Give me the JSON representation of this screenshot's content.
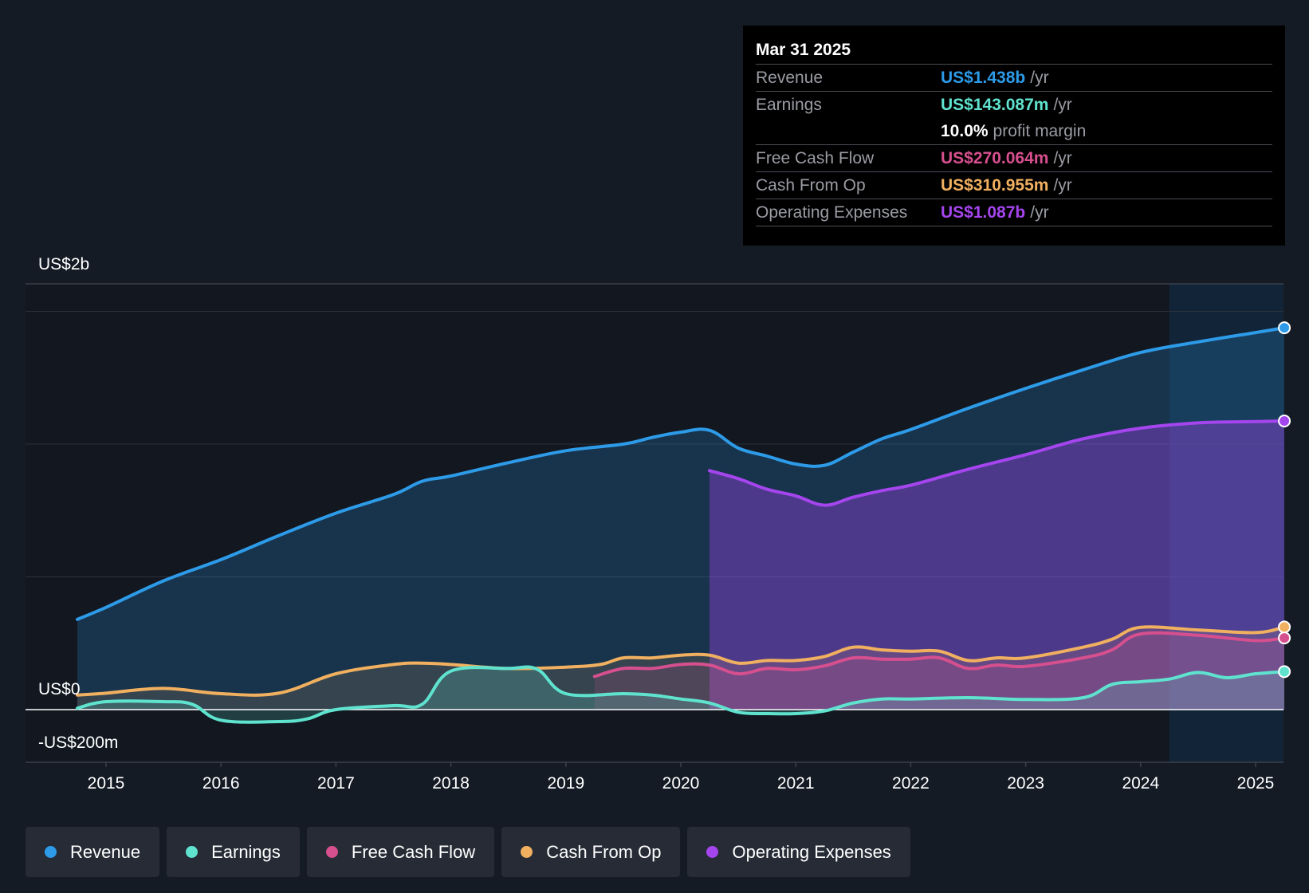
{
  "tooltip": {
    "date": "Mar 31 2025",
    "rows": [
      {
        "label": "Revenue",
        "value": "US$1.438b",
        "unit": "/yr",
        "color": "#2d9be8"
      },
      {
        "label": "Earnings",
        "value": "US$143.087m",
        "unit": "/yr",
        "color": "#5fe3cf"
      },
      {
        "label": "",
        "value": "10.0%",
        "unit": "profit margin",
        "color": "#ffffff"
      },
      {
        "label": "Free Cash Flow",
        "value": "US$270.064m",
        "unit": "/yr",
        "color": "#d64f8e"
      },
      {
        "label": "Cash From Op",
        "value": "US$310.955m",
        "unit": "/yr",
        "color": "#f0b060"
      },
      {
        "label": "Operating Expenses",
        "value": "US$1.087b",
        "unit": "/yr",
        "color": "#a545ee"
      }
    ]
  },
  "y_labels": {
    "top": "US$2b",
    "zero": "US$0",
    "bottom": "-US$200m"
  },
  "legend": [
    {
      "label": "Revenue",
      "color": "#2d9be8"
    },
    {
      "label": "Earnings",
      "color": "#5fe3cf"
    },
    {
      "label": "Free Cash Flow",
      "color": "#d64f8e"
    },
    {
      "label": "Cash From Op",
      "color": "#f0b060"
    },
    {
      "label": "Operating Expenses",
      "color": "#a545ee"
    }
  ],
  "chart_data": {
    "type": "area",
    "title": "",
    "xlabel": "",
    "ylabel": "",
    "x_ticks": [
      "2015",
      "2016",
      "2017",
      "2018",
      "2019",
      "2020",
      "2021",
      "2022",
      "2023",
      "2024",
      "2025"
    ],
    "xlim": [
      2014.3,
      2025.25
    ],
    "ylim": [
      -200,
      1600
    ],
    "y_axis_labels": [
      "US$2b",
      "US$0",
      "-US$200m"
    ],
    "gridlines_millions": [
      1500,
      1000,
      500,
      0
    ],
    "past_year_shade_start": 2024.25,
    "series": [
      {
        "name": "Revenue",
        "color": "#2d9be8",
        "points": [
          [
            2014.75,
            340
          ],
          [
            2015.0,
            385
          ],
          [
            2015.5,
            485
          ],
          [
            2016.0,
            565
          ],
          [
            2016.5,
            655
          ],
          [
            2017.0,
            740
          ],
          [
            2017.5,
            810
          ],
          [
            2017.75,
            860
          ],
          [
            2018.0,
            880
          ],
          [
            2018.5,
            930
          ],
          [
            2019.0,
            975
          ],
          [
            2019.5,
            1000
          ],
          [
            2019.75,
            1025
          ],
          [
            2020.0,
            1045
          ],
          [
            2020.25,
            1052
          ],
          [
            2020.5,
            985
          ],
          [
            2020.75,
            955
          ],
          [
            2021.0,
            925
          ],
          [
            2021.25,
            920
          ],
          [
            2021.5,
            970
          ],
          [
            2021.75,
            1020
          ],
          [
            2022.0,
            1055
          ],
          [
            2022.5,
            1135
          ],
          [
            2023.0,
            1210
          ],
          [
            2023.5,
            1280
          ],
          [
            2024.0,
            1345
          ],
          [
            2024.5,
            1385
          ],
          [
            2025.0,
            1420
          ],
          [
            2025.25,
            1438
          ]
        ]
      },
      {
        "name": "Operating Expenses",
        "color": "#a545ee",
        "points": [
          [
            2020.25,
            900
          ],
          [
            2020.5,
            870
          ],
          [
            2020.75,
            830
          ],
          [
            2021.0,
            805
          ],
          [
            2021.25,
            770
          ],
          [
            2021.5,
            800
          ],
          [
            2021.75,
            825
          ],
          [
            2022.0,
            845
          ],
          [
            2022.5,
            905
          ],
          [
            2023.0,
            960
          ],
          [
            2023.5,
            1020
          ],
          [
            2024.0,
            1060
          ],
          [
            2024.5,
            1080
          ],
          [
            2025.0,
            1085
          ],
          [
            2025.25,
            1087
          ]
        ]
      },
      {
        "name": "Cash From Op",
        "color": "#f0b060",
        "points": [
          [
            2014.75,
            55
          ],
          [
            2015.0,
            62
          ],
          [
            2015.5,
            80
          ],
          [
            2016.0,
            60
          ],
          [
            2016.5,
            62
          ],
          [
            2017.0,
            135
          ],
          [
            2017.5,
            170
          ],
          [
            2017.75,
            175
          ],
          [
            2018.0,
            170
          ],
          [
            2018.5,
            155
          ],
          [
            2019.0,
            160
          ],
          [
            2019.3,
            170
          ],
          [
            2019.5,
            195
          ],
          [
            2019.75,
            195
          ],
          [
            2020.0,
            205
          ],
          [
            2020.25,
            205
          ],
          [
            2020.5,
            175
          ],
          [
            2020.75,
            185
          ],
          [
            2021.0,
            185
          ],
          [
            2021.25,
            200
          ],
          [
            2021.5,
            235
          ],
          [
            2021.75,
            225
          ],
          [
            2022.0,
            220
          ],
          [
            2022.25,
            220
          ],
          [
            2022.5,
            185
          ],
          [
            2022.75,
            195
          ],
          [
            2023.0,
            195
          ],
          [
            2023.5,
            235
          ],
          [
            2023.75,
            265
          ],
          [
            2024.0,
            310
          ],
          [
            2024.5,
            300
          ],
          [
            2025.0,
            290
          ],
          [
            2025.25,
            311
          ]
        ]
      },
      {
        "name": "Free Cash Flow",
        "color": "#d64f8e",
        "points": [
          [
            2019.25,
            125
          ],
          [
            2019.5,
            155
          ],
          [
            2019.75,
            155
          ],
          [
            2020.0,
            170
          ],
          [
            2020.25,
            168
          ],
          [
            2020.5,
            135
          ],
          [
            2020.75,
            155
          ],
          [
            2021.0,
            150
          ],
          [
            2021.25,
            165
          ],
          [
            2021.5,
            195
          ],
          [
            2021.75,
            190
          ],
          [
            2022.0,
            190
          ],
          [
            2022.25,
            195
          ],
          [
            2022.5,
            155
          ],
          [
            2022.75,
            168
          ],
          [
            2023.0,
            163
          ],
          [
            2023.5,
            195
          ],
          [
            2023.75,
            225
          ],
          [
            2024.0,
            285
          ],
          [
            2024.5,
            280
          ],
          [
            2025.0,
            260
          ],
          [
            2025.25,
            270
          ]
        ]
      },
      {
        "name": "Earnings",
        "color": "#5fe3cf",
        "points": [
          [
            2014.75,
            5
          ],
          [
            2015.0,
            30
          ],
          [
            2015.5,
            30
          ],
          [
            2015.75,
            20
          ],
          [
            2016.0,
            -40
          ],
          [
            2016.5,
            -45
          ],
          [
            2016.75,
            -35
          ],
          [
            2017.0,
            0
          ],
          [
            2017.5,
            15
          ],
          [
            2017.75,
            20
          ],
          [
            2018.0,
            145
          ],
          [
            2018.5,
            155
          ],
          [
            2018.75,
            152
          ],
          [
            2019.0,
            60
          ],
          [
            2019.5,
            60
          ],
          [
            2019.75,
            55
          ],
          [
            2020.0,
            40
          ],
          [
            2020.25,
            25
          ],
          [
            2020.5,
            -10
          ],
          [
            2020.75,
            -15
          ],
          [
            2021.0,
            -15
          ],
          [
            2021.25,
            -5
          ],
          [
            2021.5,
            25
          ],
          [
            2021.75,
            40
          ],
          [
            2022.0,
            40
          ],
          [
            2022.5,
            45
          ],
          [
            2023.0,
            38
          ],
          [
            2023.5,
            45
          ],
          [
            2023.75,
            95
          ],
          [
            2024.0,
            105
          ],
          [
            2024.25,
            115
          ],
          [
            2024.5,
            140
          ],
          [
            2024.75,
            120
          ],
          [
            2025.0,
            135
          ],
          [
            2025.25,
            143
          ]
        ]
      }
    ]
  }
}
